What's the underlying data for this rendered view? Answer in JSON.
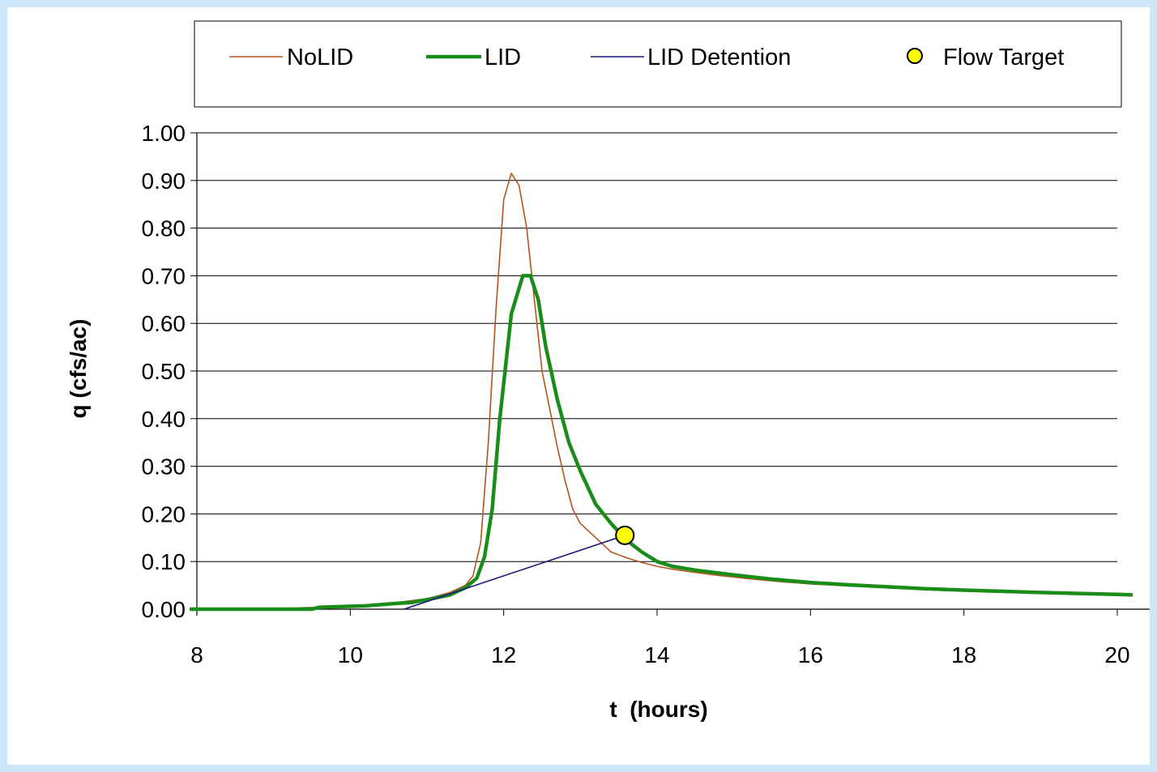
{
  "chart_data": {
    "type": "line",
    "title": "",
    "xlabel": "t  (hours)",
    "ylabel": "q (cfs/ac)",
    "xlim": [
      8,
      20
    ],
    "ylim": [
      0,
      1
    ],
    "x_ticks": [
      8,
      10,
      12,
      14,
      16,
      18,
      20
    ],
    "y_ticks": [
      0,
      0.1,
      0.2,
      0.3,
      0.4,
      0.5,
      0.6,
      0.7,
      0.8,
      0.9,
      1.0
    ],
    "x_tick_labels": [
      "8",
      "10",
      "12",
      "14",
      "16",
      "18",
      "20"
    ],
    "y_tick_labels": [
      "0.00",
      "0.10",
      "0.20",
      "0.30",
      "0.40",
      "0.50",
      "0.60",
      "0.70",
      "0.80",
      "0.90",
      "1.00"
    ],
    "grid": "horizontal",
    "legend_position": "top",
    "series": [
      {
        "name": "NoLID",
        "color": "#b5541c",
        "style": "thin-line",
        "points": [
          [
            7.9,
            0
          ],
          [
            9.0,
            0
          ],
          [
            9.4,
            0.003
          ],
          [
            9.8,
            0.005
          ],
          [
            10.2,
            0.009
          ],
          [
            10.6,
            0.014
          ],
          [
            11.0,
            0.022
          ],
          [
            11.3,
            0.035
          ],
          [
            11.5,
            0.05
          ],
          [
            11.6,
            0.07
          ],
          [
            11.7,
            0.14
          ],
          [
            11.8,
            0.35
          ],
          [
            11.9,
            0.63
          ],
          [
            12.0,
            0.86
          ],
          [
            12.1,
            0.915
          ],
          [
            12.2,
            0.89
          ],
          [
            12.3,
            0.8
          ],
          [
            12.4,
            0.65
          ],
          [
            12.5,
            0.5
          ],
          [
            12.6,
            0.42
          ],
          [
            12.7,
            0.34
          ],
          [
            12.8,
            0.27
          ],
          [
            12.9,
            0.21
          ],
          [
            13.0,
            0.18
          ],
          [
            13.2,
            0.15
          ],
          [
            13.4,
            0.12
          ],
          [
            13.6,
            0.108
          ],
          [
            13.8,
            0.098
          ],
          [
            14.0,
            0.09
          ],
          [
            14.2,
            0.084
          ],
          [
            14.4,
            0.079
          ],
          [
            14.8,
            0.071
          ],
          [
            15.2,
            0.064
          ],
          [
            15.6,
            0.058
          ],
          [
            16.0,
            0.053
          ],
          [
            16.5,
            0.049
          ],
          [
            17.0,
            0.045
          ],
          [
            17.5,
            0.041
          ],
          [
            18.0,
            0.038
          ],
          [
            18.5,
            0.036
          ],
          [
            19.0,
            0.034
          ],
          [
            19.5,
            0.032
          ],
          [
            20.0,
            0.03
          ],
          [
            20.2,
            0.029
          ]
        ]
      },
      {
        "name": "LID",
        "color": "#1a8c1a",
        "style": "thick-line",
        "points": [
          [
            7.9,
            0
          ],
          [
            9.5,
            0
          ],
          [
            9.6,
            0.004
          ],
          [
            10.2,
            0.007
          ],
          [
            10.6,
            0.012
          ],
          [
            10.8,
            0.014
          ],
          [
            11.0,
            0.02
          ],
          [
            11.3,
            0.03
          ],
          [
            11.5,
            0.045
          ],
          [
            11.65,
            0.065
          ],
          [
            11.75,
            0.11
          ],
          [
            11.85,
            0.21
          ],
          [
            11.95,
            0.4
          ],
          [
            12.1,
            0.62
          ],
          [
            12.25,
            0.7
          ],
          [
            12.35,
            0.7
          ],
          [
            12.45,
            0.65
          ],
          [
            12.55,
            0.55
          ],
          [
            12.7,
            0.44
          ],
          [
            12.85,
            0.35
          ],
          [
            13.0,
            0.29
          ],
          [
            13.2,
            0.22
          ],
          [
            13.4,
            0.18
          ],
          [
            13.6,
            0.145
          ],
          [
            13.8,
            0.12
          ],
          [
            14.0,
            0.1
          ],
          [
            14.2,
            0.09
          ],
          [
            14.5,
            0.082
          ],
          [
            15.0,
            0.072
          ],
          [
            15.5,
            0.063
          ],
          [
            16.0,
            0.056
          ],
          [
            16.5,
            0.051
          ],
          [
            17.0,
            0.047
          ],
          [
            17.5,
            0.043
          ],
          [
            18.0,
            0.04
          ],
          [
            18.6,
            0.037
          ],
          [
            19.0,
            0.035
          ],
          [
            19.5,
            0.033
          ],
          [
            20.0,
            0.031
          ],
          [
            20.2,
            0.03
          ]
        ]
      },
      {
        "name": "LID Detention",
        "color": "#1a1a7a",
        "style": "thin-line",
        "points": [
          [
            10.7,
            0
          ],
          [
            13.58,
            0.155
          ]
        ]
      },
      {
        "name": "Flow Target",
        "color": "#ffff00",
        "style": "marker",
        "points": [
          [
            13.58,
            0.155
          ]
        ]
      }
    ]
  }
}
